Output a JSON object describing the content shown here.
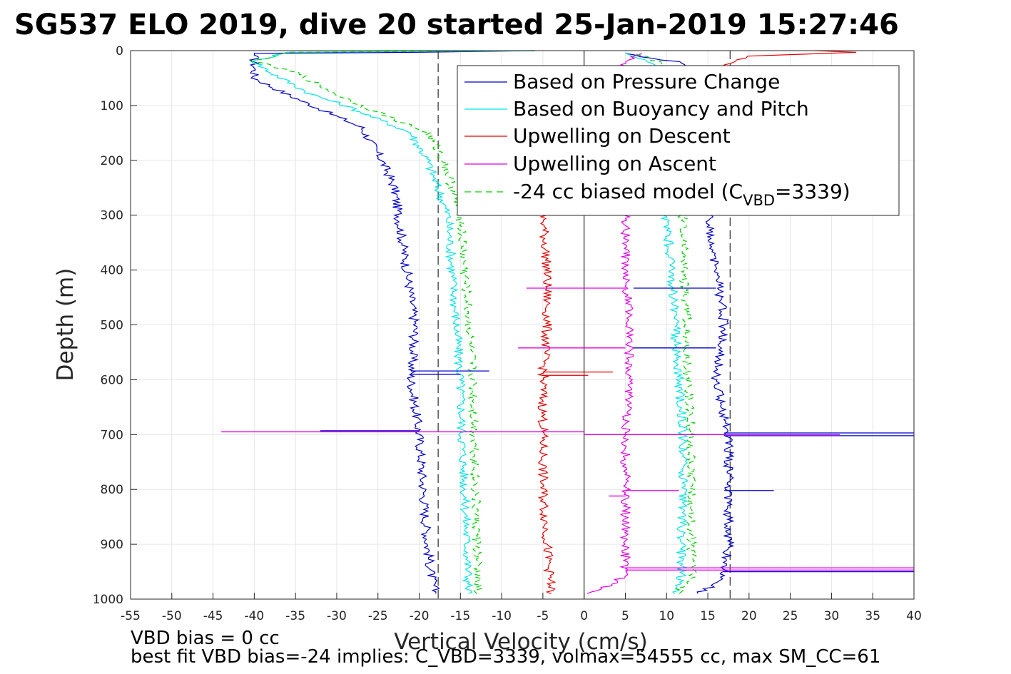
{
  "title": "SG537 ELO 2019, dive 20 started 25-Jan-2019 15:27:46",
  "notes": {
    "line1": "VBD bias = 0 cc",
    "line2": "best fit VBD bias=-24 implies: C_VBD=3339, volmax=54555 cc, max SM_CC=61"
  },
  "legend_model_subscript": "VBD",
  "legend_model_suffix": "=3339)",
  "chart_data": {
    "type": "line",
    "title": "SG537 ELO 2019, dive 20 started 25-Jan-2019 15:27:46",
    "xlabel": "Vertical Velocity (cm/s)",
    "ylabel": "Depth (m)",
    "xlim": [
      -55,
      40
    ],
    "ylim": [
      0,
      1000
    ],
    "y_reversed": true,
    "grid": true,
    "legend_position": "top-right",
    "xticks": [
      -55,
      -50,
      -45,
      -40,
      -35,
      -30,
      -25,
      -20,
      -15,
      -10,
      -5,
      0,
      5,
      10,
      15,
      20,
      25,
      30,
      35,
      40
    ],
    "yticks": [
      0,
      100,
      200,
      300,
      400,
      500,
      600,
      700,
      800,
      900,
      1000
    ],
    "reference_lines": [
      {
        "x": -17.7,
        "style": "dashed",
        "color": "#000000"
      },
      {
        "x": 17.7,
        "style": "dashed",
        "color": "#000000"
      },
      {
        "x": 0,
        "style": "solid",
        "color": "#000000"
      }
    ],
    "series": [
      {
        "name": "Based on Pressure Change",
        "color": "#0000cc",
        "dash": "none",
        "descent": [
          [
            0,
            -6
          ],
          [
            3,
            -20
          ],
          [
            5,
            -40
          ],
          [
            20,
            -40
          ],
          [
            50,
            -40
          ],
          [
            80,
            -36
          ],
          [
            100,
            -33
          ],
          [
            140,
            -27
          ],
          [
            200,
            -24.5
          ],
          [
            250,
            -23
          ],
          [
            300,
            -22.5
          ],
          [
            400,
            -21.5
          ],
          [
            500,
            -20.5
          ],
          [
            600,
            -21
          ],
          [
            700,
            -20
          ],
          [
            800,
            -19.5
          ],
          [
            900,
            -19
          ],
          [
            960,
            -18.5
          ],
          [
            990,
            -18
          ]
        ],
        "ascent": [
          [
            990,
            14
          ],
          [
            960,
            17
          ],
          [
            900,
            17.5
          ],
          [
            800,
            17.5
          ],
          [
            700,
            17.5
          ],
          [
            600,
            16
          ],
          [
            500,
            17
          ],
          [
            400,
            16
          ],
          [
            300,
            15
          ],
          [
            200,
            15
          ],
          [
            100,
            15
          ],
          [
            50,
            15
          ],
          [
            20,
            11
          ],
          [
            5,
            5
          ]
        ]
      },
      {
        "name": "Based on Buoyancy and Pitch",
        "color": "#00e5e5",
        "dash": "none",
        "descent": [
          [
            0,
            -6
          ],
          [
            3,
            -36
          ],
          [
            20,
            -40
          ],
          [
            40,
            -38
          ],
          [
            80,
            -33
          ],
          [
            100,
            -29
          ],
          [
            150,
            -21
          ],
          [
            200,
            -19
          ],
          [
            300,
            -16.5
          ],
          [
            400,
            -16
          ],
          [
            500,
            -15.5
          ],
          [
            600,
            -15
          ],
          [
            700,
            -14.8
          ],
          [
            800,
            -14.5
          ],
          [
            900,
            -14.2
          ],
          [
            990,
            -14
          ]
        ],
        "ascent": [
          [
            990,
            11
          ],
          [
            960,
            11.8
          ],
          [
            900,
            11.8
          ],
          [
            800,
            12
          ],
          [
            700,
            12
          ],
          [
            600,
            11.5
          ],
          [
            500,
            11
          ],
          [
            400,
            10.5
          ],
          [
            300,
            10
          ],
          [
            200,
            10
          ],
          [
            100,
            10
          ],
          [
            20,
            8
          ],
          [
            5,
            5
          ]
        ]
      },
      {
        "name": "Upwelling on Descent",
        "color": "#e50000",
        "dash": "none",
        "descent": [
          [
            0,
            28
          ],
          [
            3,
            33
          ],
          [
            10,
            20
          ],
          [
            20,
            18
          ],
          [
            300,
            -5
          ],
          [
            400,
            -4.5
          ],
          [
            500,
            -4.5
          ],
          [
            600,
            -5
          ],
          [
            700,
            -5
          ],
          [
            800,
            -5
          ],
          [
            900,
            -4.5
          ],
          [
            990,
            -4
          ]
        ],
        "ascent": []
      },
      {
        "name": "Upwelling on Ascent",
        "color": "#e500e5",
        "dash": "none",
        "descent": [],
        "ascent": [
          [
            990,
            0
          ],
          [
            970,
            4
          ],
          [
            950,
            5
          ],
          [
            900,
            5
          ],
          [
            800,
            5
          ],
          [
            700,
            5
          ],
          [
            600,
            5.5
          ],
          [
            500,
            5.5
          ],
          [
            400,
            5
          ],
          [
            300,
            5
          ],
          [
            20,
            5
          ],
          [
            5,
            7
          ]
        ]
      },
      {
        "name": "-24 cc biased model (C",
        "color": "#00d000",
        "dash": "dashed",
        "descent": [
          [
            0,
            -6
          ],
          [
            3,
            -36
          ],
          [
            20,
            -40
          ],
          [
            40,
            -35
          ],
          [
            80,
            -30
          ],
          [
            100,
            -27
          ],
          [
            150,
            -19
          ],
          [
            200,
            -17
          ],
          [
            300,
            -15
          ],
          [
            400,
            -14.5
          ],
          [
            500,
            -14
          ],
          [
            600,
            -13.5
          ],
          [
            700,
            -13.3
          ],
          [
            800,
            -13.2
          ],
          [
            900,
            -13
          ],
          [
            990,
            -13
          ]
        ],
        "ascent": [
          [
            990,
            11
          ],
          [
            960,
            13
          ],
          [
            900,
            13
          ],
          [
            800,
            13
          ],
          [
            700,
            13
          ],
          [
            600,
            12.5
          ],
          [
            500,
            12.5
          ],
          [
            400,
            12
          ],
          [
            300,
            12
          ],
          [
            200,
            12
          ],
          [
            100,
            12
          ],
          [
            20,
            9
          ],
          [
            5,
            6
          ]
        ]
      }
    ],
    "spikes": [
      {
        "color": "#e500e5",
        "depth": 695,
        "from": 0,
        "to": -44
      },
      {
        "color": "#e500e5",
        "depth": 700,
        "from": 0,
        "to": 31
      },
      {
        "color": "#0000cc",
        "depth": 693,
        "from": -20,
        "to": -32
      },
      {
        "color": "#0000cc",
        "depth": 697,
        "from": 17,
        "to": 40
      },
      {
        "color": "#0000cc",
        "depth": 702,
        "from": 17,
        "to": 40
      },
      {
        "color": "#e500e5",
        "depth": 943,
        "from": 5,
        "to": 40
      },
      {
        "color": "#e500e5",
        "depth": 947,
        "from": 5,
        "to": 40
      },
      {
        "color": "#0000cc",
        "depth": 950,
        "from": 17,
        "to": 40
      },
      {
        "color": "#e500e5",
        "depth": 433,
        "from": 5,
        "to": -7
      },
      {
        "color": "#0000cc",
        "depth": 433,
        "from": 16,
        "to": 6
      },
      {
        "color": "#e500e5",
        "depth": 542,
        "from": 5,
        "to": -8
      },
      {
        "color": "#0000cc",
        "depth": 542,
        "from": 16,
        "to": 6
      },
      {
        "color": "#0000cc",
        "depth": 584,
        "from": -21,
        "to": -11.5
      },
      {
        "color": "#0000cc",
        "depth": 590,
        "from": -21,
        "to": -15
      },
      {
        "color": "#e50000",
        "depth": 586,
        "from": -5,
        "to": 3.5
      },
      {
        "color": "#e50000",
        "depth": 592,
        "from": -5,
        "to": 0.5
      },
      {
        "color": "#0000cc",
        "depth": 802,
        "from": 17,
        "to": 23
      },
      {
        "color": "#e500e5",
        "depth": 812,
        "from": 5,
        "to": 3
      },
      {
        "color": "#e500e5",
        "depth": 802,
        "from": 5,
        "to": 11.5
      }
    ]
  }
}
